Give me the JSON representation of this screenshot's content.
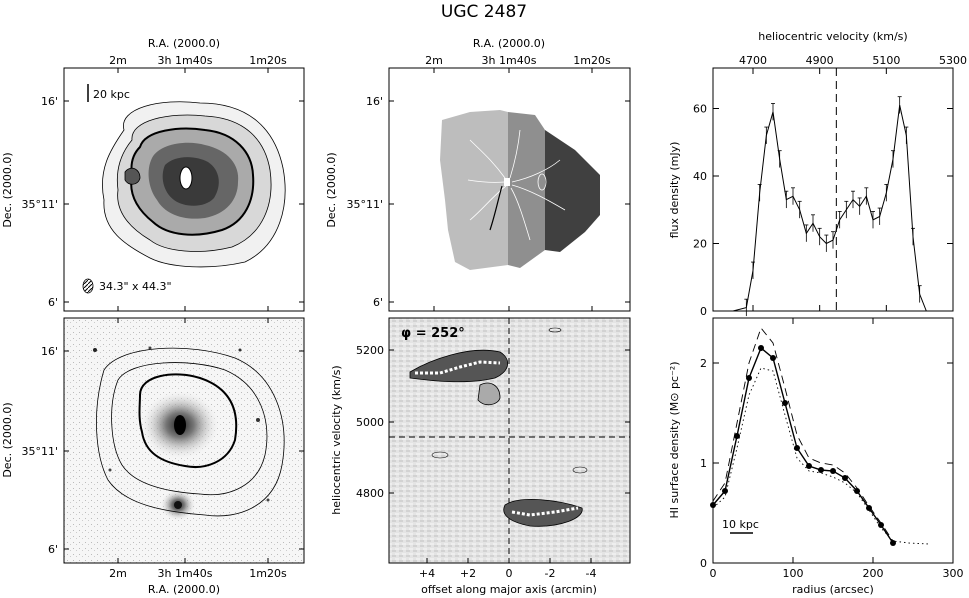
{
  "figure": {
    "title": "UGC 2487"
  },
  "panels": {
    "mom0": {
      "top_label": "R.A. (2000.0)",
      "left_label": "Dec. (2000.0)",
      "ra_ticks": [
        "2m",
        "3h 1m40s",
        "1m20s"
      ],
      "dec_ticks": [
        "16'",
        "35°11'",
        "6'"
      ],
      "scale_bar": "20 kpc",
      "beam": "34.3\" x 44.3\""
    },
    "velfield": {
      "top_label": "R.A. (2000.0)",
      "left_label": "Dec. (2000.0)",
      "ra_ticks": [
        "2m",
        "3h 1m40s",
        "1m20s"
      ],
      "dec_ticks": [
        "16'",
        "35°11'",
        "6'"
      ]
    },
    "optical": {
      "bottom_label": "R.A. (2000.0)",
      "left_label": "Dec. (2000.0)",
      "ra_ticks": [
        "2m",
        "3h 1m40s",
        "1m20s"
      ],
      "dec_ticks": [
        "16'",
        "35°11'",
        "6'"
      ]
    },
    "pv": {
      "bottom_label": "offset along major axis (arcmin)",
      "left_label": "heliocentric velocity (km/s)",
      "phi_label": "φ = 252°",
      "x_ticks": [
        "+4",
        "+2",
        "0",
        "-2",
        "-4"
      ],
      "y_ticks": [
        "5200",
        "5000",
        "4800"
      ]
    }
  },
  "chart_data": [
    {
      "type": "line",
      "id": "global-profile",
      "title": "",
      "xlabel": "heliocentric velocity (km/s)",
      "ylabel": "flux density (mJy)",
      "xlim": [
        4580,
        5300
      ],
      "ylim": [
        0,
        72
      ],
      "x_ticks": [
        4700,
        4900,
        5100,
        5300
      ],
      "y_ticks": [
        0,
        20,
        40,
        60
      ],
      "systemic_velocity": 4950,
      "x": [
        4580,
        4640,
        4680,
        4700,
        4720,
        4740,
        4760,
        4780,
        4800,
        4820,
        4840,
        4860,
        4880,
        4900,
        4920,
        4940,
        4960,
        4980,
        5000,
        5020,
        5040,
        5060,
        5080,
        5100,
        5120,
        5140,
        5160,
        5180,
        5200,
        5220,
        5240,
        5300
      ],
      "y": [
        0,
        0,
        1,
        12,
        35,
        52,
        59,
        45,
        33,
        34,
        30,
        23,
        26,
        22,
        20,
        21,
        27,
        30,
        33,
        31,
        34,
        27,
        28,
        35,
        45,
        61,
        52,
        22,
        5,
        0,
        0,
        0
      ]
    },
    {
      "type": "line",
      "id": "hi-surface-density",
      "title": "",
      "xlabel": "radius (arcsec)",
      "ylabel": "HI surface density (M⊙ pc⁻²)",
      "xlim": [
        0,
        300
      ],
      "ylim": [
        0,
        2.45
      ],
      "x_ticks": [
        0,
        100,
        200,
        300
      ],
      "y_ticks": [
        0,
        1,
        2
      ],
      "scale_bar": "10 kpc",
      "series": [
        {
          "style": "solid",
          "x": [
            0,
            15,
            30,
            45,
            60,
            75,
            90,
            105,
            120,
            135,
            150,
            165,
            180,
            195,
            210,
            225
          ],
          "y": [
            0.58,
            0.72,
            1.27,
            1.85,
            2.15,
            2.05,
            1.6,
            1.15,
            0.97,
            0.93,
            0.92,
            0.85,
            0.72,
            0.55,
            0.38,
            0.2
          ]
        },
        {
          "style": "dashed",
          "x": [
            0,
            15,
            30,
            45,
            60,
            75,
            90,
            105,
            120,
            135,
            150,
            165,
            180,
            195,
            210,
            225
          ],
          "y": [
            0.62,
            0.8,
            1.4,
            2.0,
            2.35,
            2.2,
            1.75,
            1.28,
            1.05,
            1.0,
            0.98,
            0.9,
            0.75,
            0.57,
            0.4,
            0.22
          ]
        },
        {
          "style": "dotted",
          "x": [
            0,
            15,
            30,
            45,
            60,
            75,
            90,
            105,
            120,
            135,
            150,
            165,
            180,
            195,
            210,
            225,
            245,
            270
          ],
          "y": [
            0.55,
            0.66,
            1.15,
            1.68,
            1.95,
            1.92,
            1.48,
            1.05,
            0.92,
            0.9,
            0.86,
            0.8,
            0.7,
            0.53,
            0.35,
            0.22,
            0.2,
            0.19
          ]
        }
      ]
    }
  ]
}
